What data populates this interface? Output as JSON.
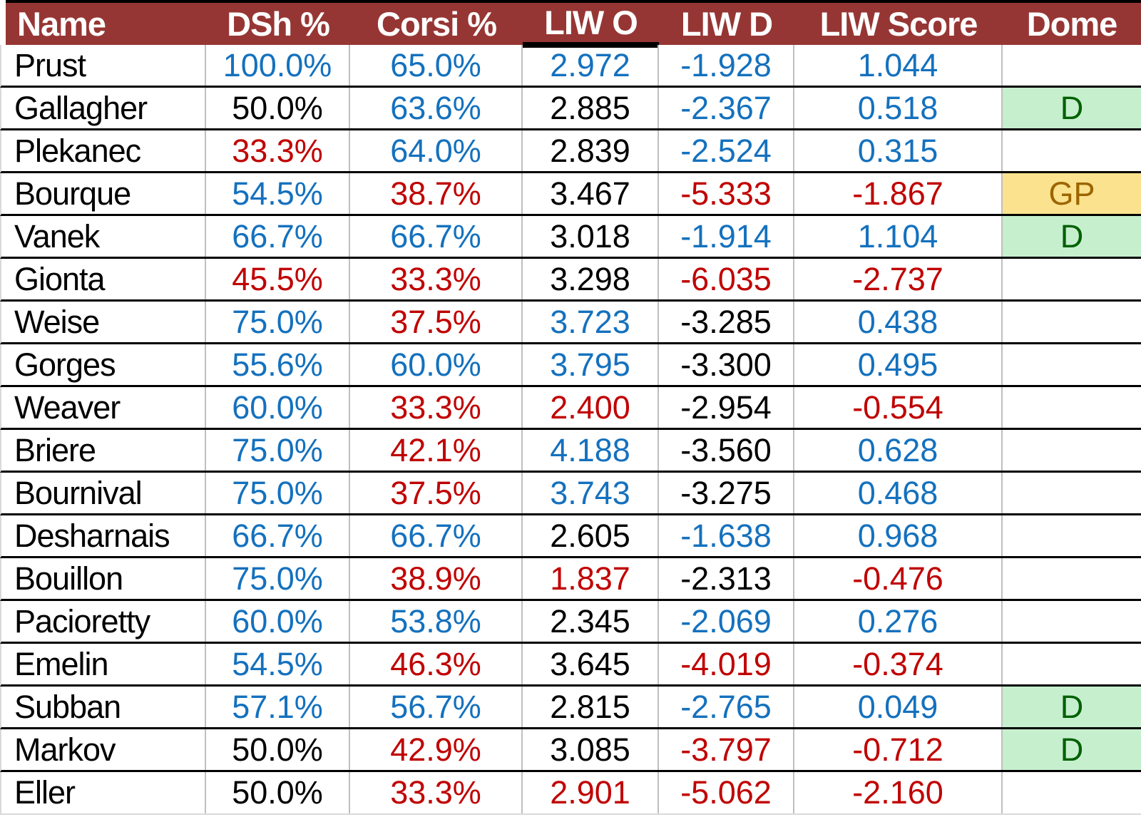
{
  "styles": {
    "header_bg": "#963634",
    "header_text": "#ffffff",
    "row_divider": "#000000",
    "gridline": "#bfbfbf",
    "value_colors": {
      "blue": "#1471be",
      "red": "#c00000",
      "black": "#000000"
    },
    "dome_good_bg": "#c6efce",
    "dome_good_text": "#006100",
    "dome_neutral_bg": "#fbe28e",
    "dome_neutral_text": "#9c6500"
  },
  "chart_data": {
    "type": "table",
    "columns": [
      "Name",
      "DSh %",
      "Corsi %",
      "LIW O",
      "LIW D",
      "LIW Score",
      "Dome"
    ],
    "rows": [
      {
        "name": "Prust",
        "values": [
          "100.0%",
          "65.0%",
          "2.972",
          "-1.928",
          "1.044"
        ],
        "colors": [
          "blue",
          "blue",
          "blue",
          "blue",
          "blue"
        ],
        "dome": "",
        "dome_style": ""
      },
      {
        "name": "Gallagher",
        "values": [
          "50.0%",
          "63.6%",
          "2.885",
          "-2.367",
          "0.518"
        ],
        "colors": [
          "black",
          "blue",
          "black",
          "blue",
          "blue"
        ],
        "dome": "D",
        "dome_style": "good"
      },
      {
        "name": "Plekanec",
        "values": [
          "33.3%",
          "64.0%",
          "2.839",
          "-2.524",
          "0.315"
        ],
        "colors": [
          "red",
          "blue",
          "black",
          "blue",
          "blue"
        ],
        "dome": "",
        "dome_style": ""
      },
      {
        "name": "Bourque",
        "values": [
          "54.5%",
          "38.7%",
          "3.467",
          "-5.333",
          "-1.867"
        ],
        "colors": [
          "blue",
          "red",
          "black",
          "red",
          "red"
        ],
        "dome": "GP",
        "dome_style": "neutral"
      },
      {
        "name": "Vanek",
        "values": [
          "66.7%",
          "66.7%",
          "3.018",
          "-1.914",
          "1.104"
        ],
        "colors": [
          "blue",
          "blue",
          "black",
          "blue",
          "blue"
        ],
        "dome": "D",
        "dome_style": "good"
      },
      {
        "name": "Gionta",
        "values": [
          "45.5%",
          "33.3%",
          "3.298",
          "-6.035",
          "-2.737"
        ],
        "colors": [
          "red",
          "red",
          "black",
          "red",
          "red"
        ],
        "dome": "",
        "dome_style": ""
      },
      {
        "name": "Weise",
        "values": [
          "75.0%",
          "37.5%",
          "3.723",
          "-3.285",
          "0.438"
        ],
        "colors": [
          "blue",
          "red",
          "blue",
          "black",
          "blue"
        ],
        "dome": "",
        "dome_style": ""
      },
      {
        "name": "Gorges",
        "values": [
          "55.6%",
          "60.0%",
          "3.795",
          "-3.300",
          "0.495"
        ],
        "colors": [
          "blue",
          "blue",
          "blue",
          "black",
          "blue"
        ],
        "dome": "",
        "dome_style": ""
      },
      {
        "name": "Weaver",
        "values": [
          "60.0%",
          "33.3%",
          "2.400",
          "-2.954",
          "-0.554"
        ],
        "colors": [
          "blue",
          "red",
          "red",
          "black",
          "red"
        ],
        "dome": "",
        "dome_style": ""
      },
      {
        "name": "Briere",
        "values": [
          "75.0%",
          "42.1%",
          "4.188",
          "-3.560",
          "0.628"
        ],
        "colors": [
          "blue",
          "red",
          "blue",
          "black",
          "blue"
        ],
        "dome": "",
        "dome_style": ""
      },
      {
        "name": "Bournival",
        "values": [
          "75.0%",
          "37.5%",
          "3.743",
          "-3.275",
          "0.468"
        ],
        "colors": [
          "blue",
          "red",
          "blue",
          "black",
          "blue"
        ],
        "dome": "",
        "dome_style": ""
      },
      {
        "name": "Desharnais",
        "values": [
          "66.7%",
          "66.7%",
          "2.605",
          "-1.638",
          "0.968"
        ],
        "colors": [
          "blue",
          "blue",
          "black",
          "blue",
          "blue"
        ],
        "dome": "",
        "dome_style": ""
      },
      {
        "name": "Bouillon",
        "values": [
          "75.0%",
          "38.9%",
          "1.837",
          "-2.313",
          "-0.476"
        ],
        "colors": [
          "blue",
          "red",
          "red",
          "black",
          "red"
        ],
        "dome": "",
        "dome_style": ""
      },
      {
        "name": "Pacioretty",
        "values": [
          "60.0%",
          "53.8%",
          "2.345",
          "-2.069",
          "0.276"
        ],
        "colors": [
          "blue",
          "blue",
          "black",
          "blue",
          "blue"
        ],
        "dome": "",
        "dome_style": ""
      },
      {
        "name": "Emelin",
        "values": [
          "54.5%",
          "46.3%",
          "3.645",
          "-4.019",
          "-0.374"
        ],
        "colors": [
          "blue",
          "red",
          "black",
          "red",
          "red"
        ],
        "dome": "",
        "dome_style": ""
      },
      {
        "name": "Subban",
        "values": [
          "57.1%",
          "56.7%",
          "2.815",
          "-2.765",
          "0.049"
        ],
        "colors": [
          "blue",
          "blue",
          "black",
          "blue",
          "blue"
        ],
        "dome": "D",
        "dome_style": "good"
      },
      {
        "name": "Markov",
        "values": [
          "50.0%",
          "42.9%",
          "3.085",
          "-3.797",
          "-0.712"
        ],
        "colors": [
          "black",
          "red",
          "black",
          "red",
          "red"
        ],
        "dome": "D",
        "dome_style": "good"
      },
      {
        "name": "Eller",
        "values": [
          "50.0%",
          "33.3%",
          "2.901",
          "-5.062",
          "-2.160"
        ],
        "colors": [
          "black",
          "red",
          "red",
          "red",
          "red"
        ],
        "dome": "",
        "dome_style": ""
      }
    ]
  }
}
